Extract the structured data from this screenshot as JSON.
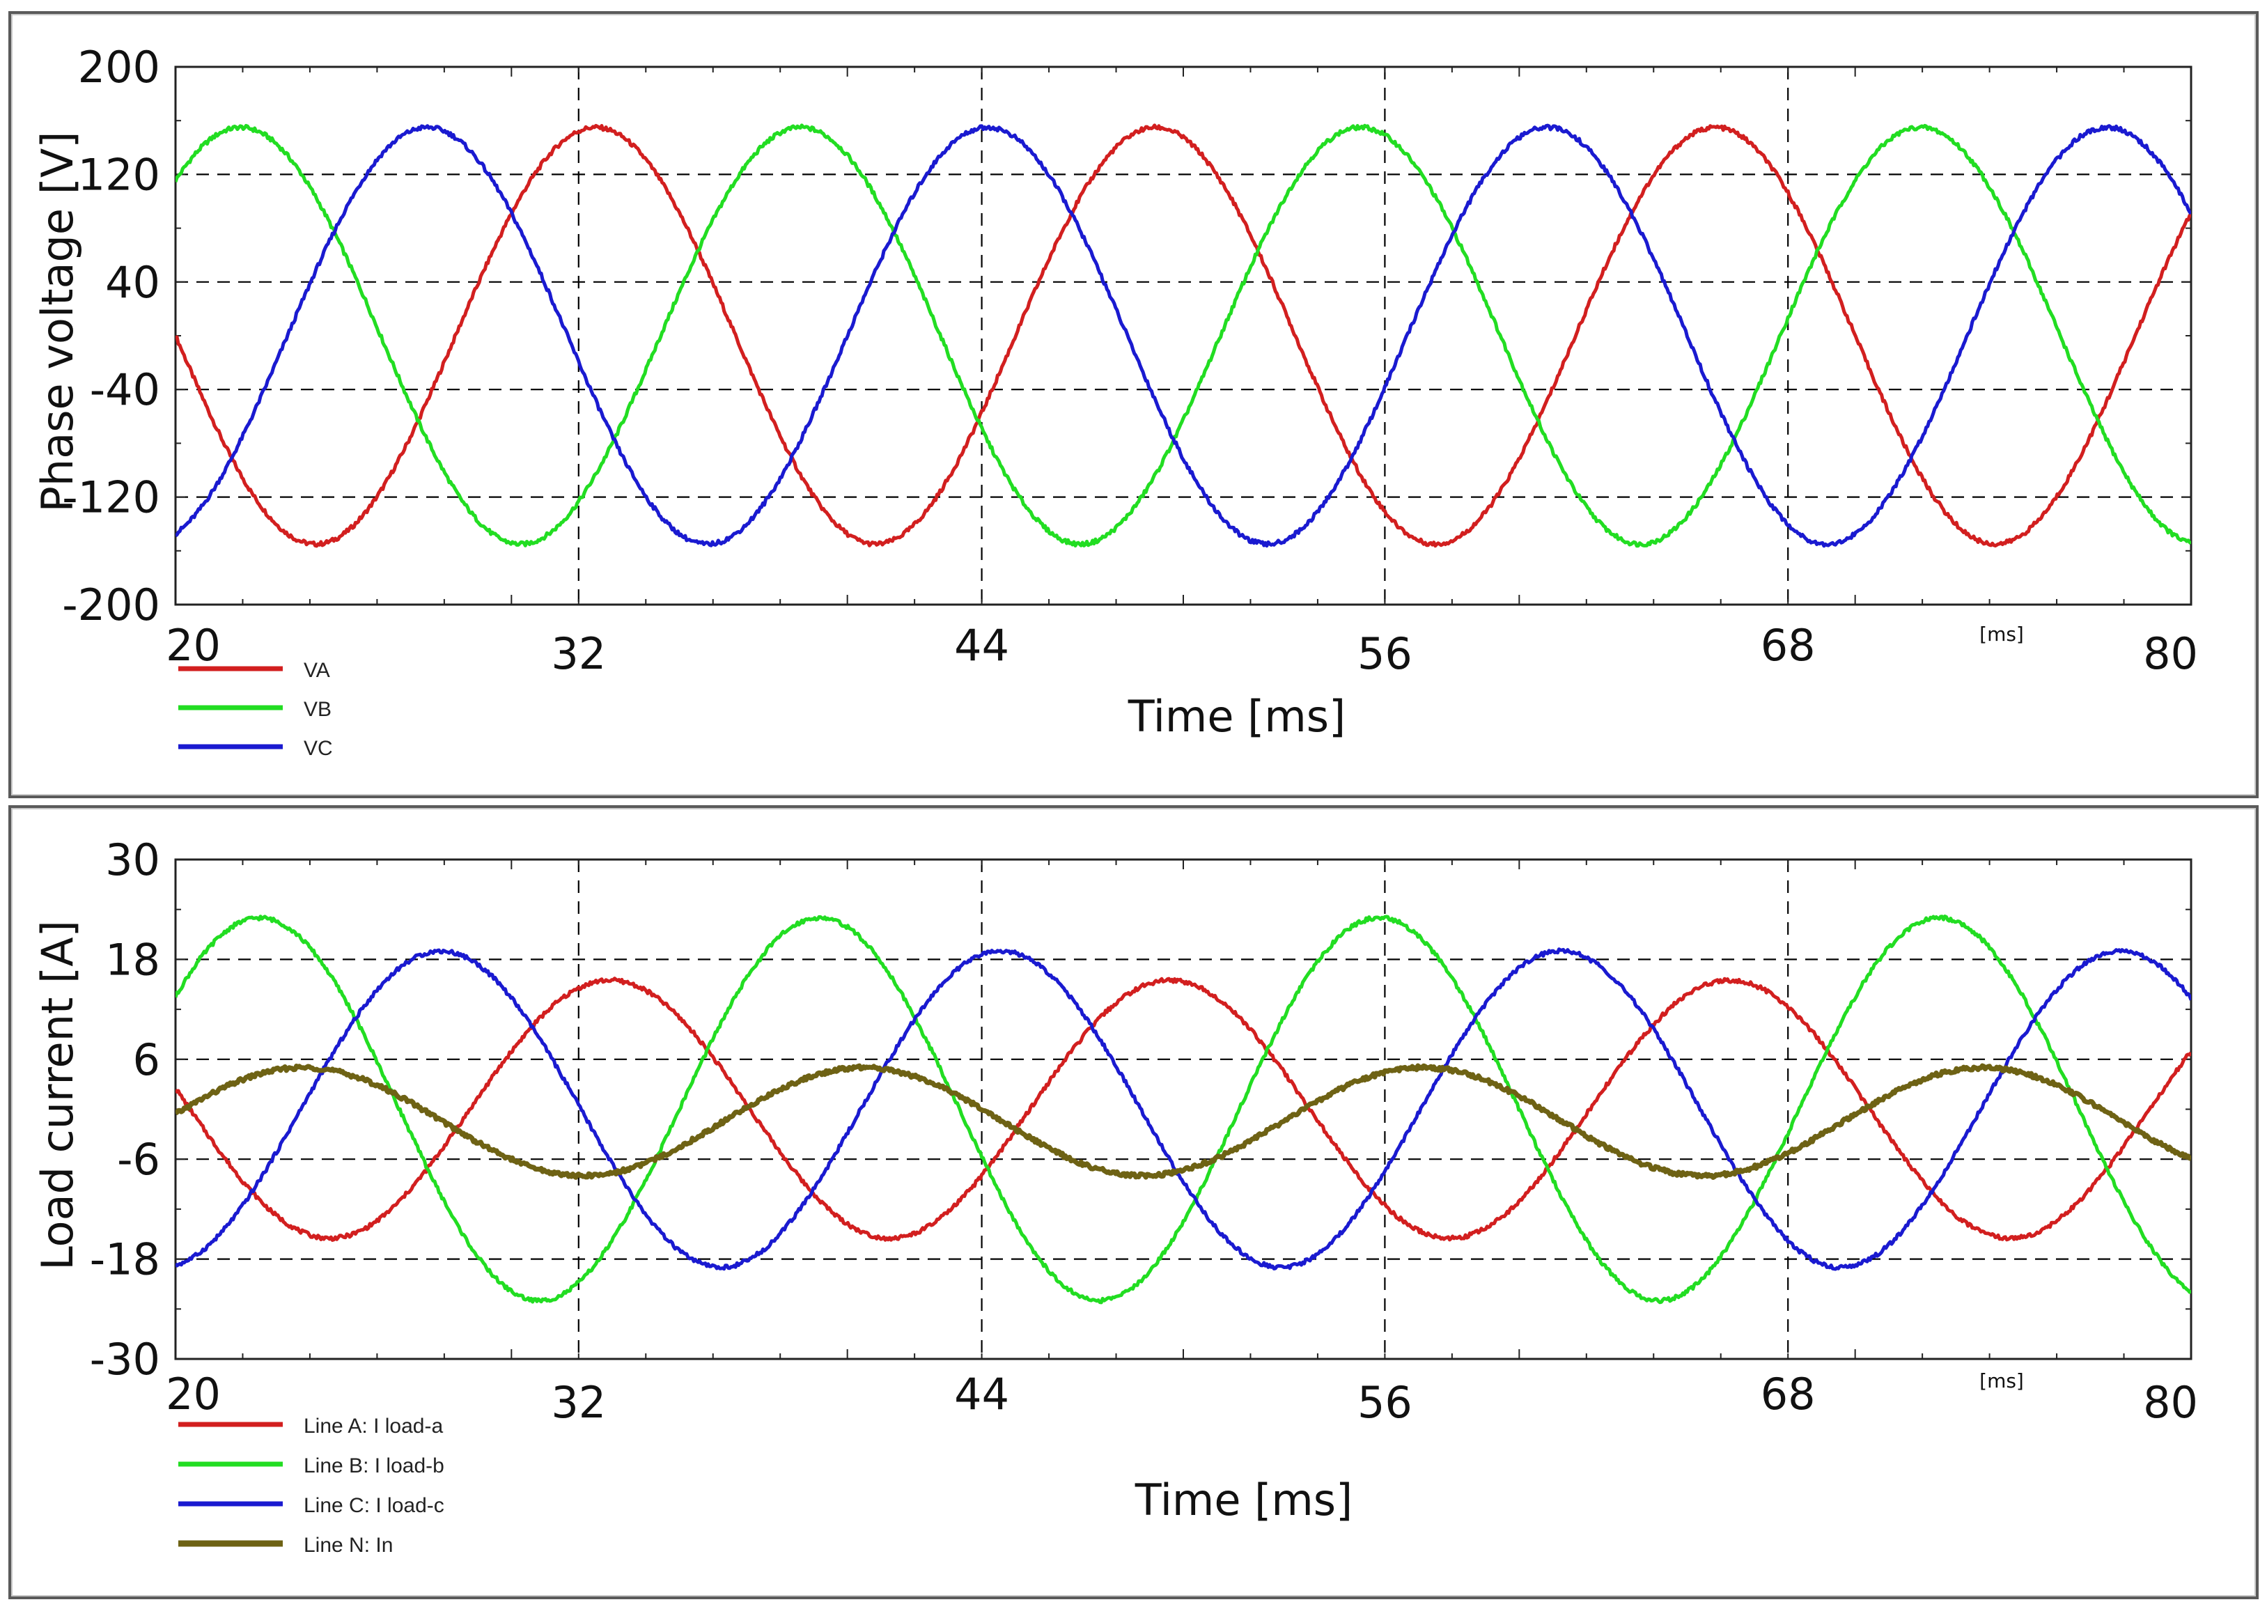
{
  "chart_data": [
    {
      "type": "line",
      "id": "top",
      "ylabel": "Phase voltage [V]",
      "xlabel": "Time [ms]",
      "x_unit_label": "[ms]",
      "xlim": [
        20,
        80
      ],
      "ylim": [
        -200,
        200
      ],
      "x_ticks": [
        "20",
        "32",
        "44",
        "56",
        "68",
        "80"
      ],
      "y_ticks": [
        "200",
        "120",
        "40",
        "-40",
        "-120",
        "-200"
      ],
      "grid": true,
      "legend_placement": "bottom-left",
      "series": [
        {
          "name": "VA",
          "color": "#d21f1f",
          "amplitude": 155,
          "offset": 0,
          "frequency_hz": 60,
          "phase_deg": 0,
          "x": [
            20,
            24.17,
            32.5,
            40.83,
            49.17,
            57.5,
            65.83,
            74.17,
            80
          ],
          "y": [
            46,
            -155,
            155,
            -155,
            155,
            -155,
            155,
            -155,
            46
          ]
        },
        {
          "name": "VB",
          "color": "#22dd22",
          "amplitude": 155,
          "offset": 0,
          "frequency_hz": 60,
          "phase_deg": -120,
          "x": [
            20,
            21.94,
            30.28,
            38.61,
            46.94,
            55.28,
            63.61,
            71.94,
            80
          ],
          "y": [
            105,
            155,
            -155,
            155,
            -155,
            155,
            -155,
            155,
            -155
          ]
        },
        {
          "name": "VC",
          "color": "#1a1ad0",
          "amplitude": 155,
          "offset": 0,
          "frequency_hz": 60,
          "phase_deg": 120,
          "x": [
            20,
            27.5,
            35.83,
            44.17,
            52.5,
            60.83,
            69.17,
            77.5,
            80
          ],
          "y": [
            -140,
            155,
            -155,
            155,
            -155,
            155,
            -155,
            155,
            108
          ]
        }
      ]
    },
    {
      "type": "line",
      "id": "bottom",
      "ylabel": "Load current [A]",
      "xlabel": "Time [ms]",
      "x_unit_label": "[ms]",
      "xlim": [
        20,
        80
      ],
      "ylim": [
        -30,
        30
      ],
      "x_ticks": [
        "20",
        "32",
        "44",
        "56",
        "68",
        "80"
      ],
      "y_ticks": [
        "30",
        "18",
        "6",
        "-6",
        "-18",
        "-30"
      ],
      "grid": true,
      "legend_placement": "bottom-left",
      "series": [
        {
          "name": "Line A: I load-a",
          "color": "#d21f1f",
          "amplitude": 15.5,
          "offset": 0,
          "frequency_hz": 60,
          "phase_deg": 0,
          "x": [
            20,
            24.6,
            33.0,
            41.3,
            49.6,
            57.9,
            66.3,
            74.6,
            80
          ],
          "y": [
            3.8,
            -15.5,
            15.5,
            -15.5,
            15.5,
            -15.5,
            15.5,
            -15.5,
            3.8
          ]
        },
        {
          "name": "Line B: I load-b",
          "color": "#22dd22",
          "amplitude": 23,
          "offset": 0,
          "frequency_hz": 60,
          "phase_deg": -120,
          "x": [
            20,
            22.5,
            30.8,
            39.2,
            47.5,
            55.8,
            64.2,
            72.5,
            80
          ],
          "y": [
            13,
            23,
            -23,
            23,
            -23,
            23,
            -23,
            23,
            -23
          ]
        },
        {
          "name": "Line C: I load-c",
          "color": "#1a1ad0",
          "amplitude": 19,
          "offset": 0,
          "frequency_hz": 60,
          "phase_deg": 120,
          "x": [
            20,
            27.9,
            36.3,
            44.6,
            52.9,
            61.2,
            69.6,
            77.9,
            80
          ],
          "y": [
            -18,
            19,
            -19,
            19,
            -19,
            19,
            -19,
            19,
            13
          ]
        },
        {
          "name": "Line N: In",
          "color": "#6e6214",
          "amplitude": 6.5,
          "offset": -1.5,
          "frequency_hz": 60,
          "phase_deg": 0,
          "x": [
            20,
            23.8,
            32.1,
            40.4,
            48.8,
            57.1,
            65.4,
            73.8,
            80
          ],
          "y": [
            -0.8,
            5,
            -8,
            5,
            -8,
            5,
            -8,
            5,
            -3.5
          ]
        }
      ]
    }
  ]
}
